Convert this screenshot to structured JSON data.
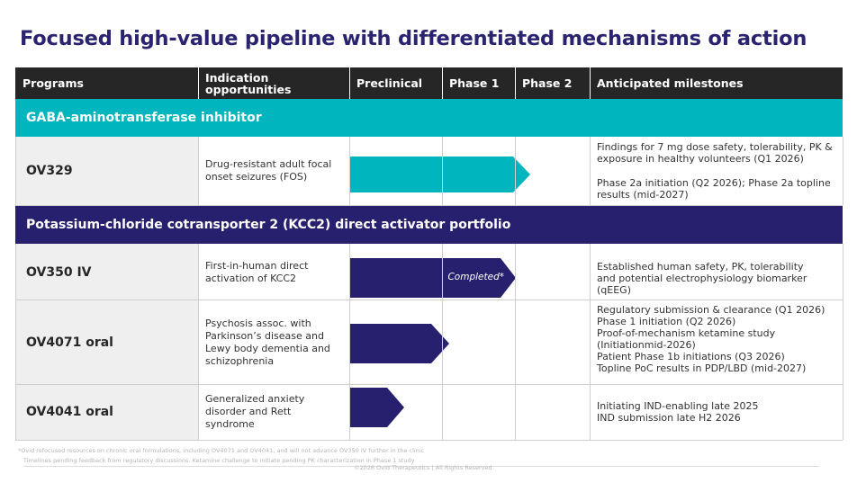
{
  "title": "Focused high-value pipeline with differentiated mechanisms of action",
  "colors": {
    "teal": "#00b5bd",
    "navy": "#27206e",
    "header": "#262626"
  },
  "header": {
    "programs": "Programs",
    "indication": "Indication opportunities",
    "preclinical": "Preclinical",
    "phase1": "Phase 1",
    "phase2": "Phase 2",
    "milestones": "Anticipated milestones"
  },
  "sections": {
    "gaba": "GABA-aminotransferase inhibitor",
    "kcc2": "Potassium-chloride cotransporter 2 (KCC2) direct activator portfolio"
  },
  "rows": {
    "ov329": {
      "program": "OV329",
      "indication": "Drug-resistant adult focal onset seizures (FOS)",
      "milestones": [
        "Findings for 7 mg dose safety, tolerability, PK & exposure in healthy volunteers (Q1 2026)",
        "Phase 2a initiation (Q2 2026); Phase 2a topline results (mid-2027)"
      ]
    },
    "ov350": {
      "program": "OV350 IV",
      "indication": "First-in-human direct activation of KCC2",
      "bar_label": "Completed*",
      "milestones": [
        "Established human safety, PK, tolerability and potential electrophysiology biomarker (qEEG)"
      ]
    },
    "ov4071": {
      "program": "OV4071 oral",
      "indication": "Psychosis assoc. with Parkinson’s disease and Lewy body dementia and schizophrenia",
      "milestones": [
        "Regulatory submission & clearance (Q1 2026)",
        "Phase 1 initiation (Q2 2026)",
        "Proof-of-mechanism ketamine study (Initiationmid-2026)",
        "Patient Phase 1b initiations  (Q3 2026)",
        "Topline PoC results in PDP/LBD (mid-2027)"
      ]
    },
    "ov4041": {
      "program": "OV4041 oral",
      "indication": "Generalized anxiety disorder and Rett syndrome",
      "milestones": [
        "Initiating IND-enabling late 2025",
        "IND submission late H2 2026"
      ]
    }
  },
  "footnotes": {
    "line1": "*Ovid refocused resources on chronic oral formulations, including OV4071 and OV4041, and will not advance OV350 IV further in the clinic",
    "line2": "Timelines pending feedback from regulatory discussions. Ketamine challenge to initiate pending PK characterization in Phase 1 study",
    "copyright": "©2026 Ovid Therapeutics | All Rights Reserved"
  }
}
